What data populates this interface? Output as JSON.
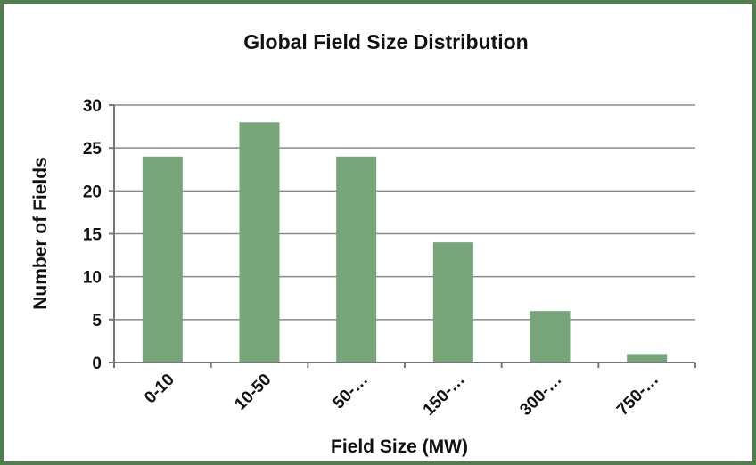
{
  "chart_data": {
    "type": "bar",
    "title": "Global Field Size Distribution",
    "xlabel": "Field Size (MW)",
    "ylabel": "Number of Fields",
    "categories": [
      "0-10",
      "10-50",
      "50-…",
      "150-…",
      "300-…",
      "750-…"
    ],
    "values": [
      24,
      28,
      24,
      14,
      6,
      1
    ],
    "ylim": [
      0,
      30
    ],
    "yticks": [
      0,
      5,
      10,
      15,
      20,
      25,
      30
    ],
    "grid": true,
    "legend": "none",
    "bar_color": "#76a57a",
    "frame_color": "#4f7f4c"
  }
}
